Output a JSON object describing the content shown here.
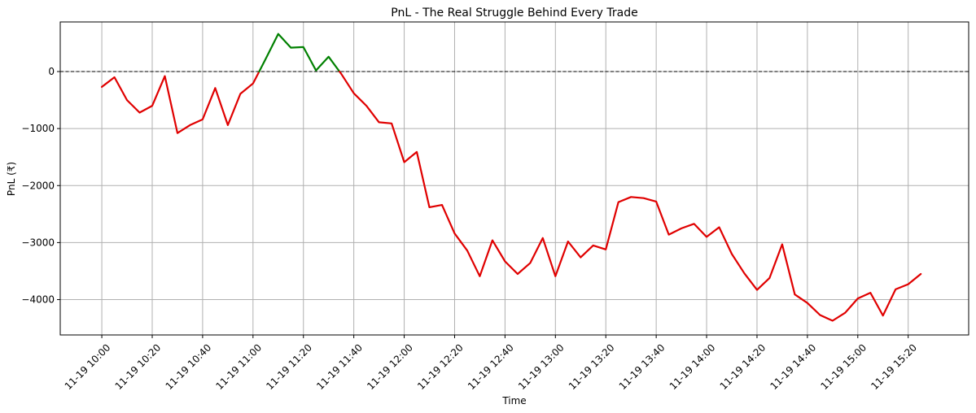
{
  "chart_data": {
    "type": "line",
    "title": "PnL - The Real Struggle Behind Every Trade",
    "xlabel": "Time",
    "ylabel": "PnL (₹)",
    "x_ticks": [
      "11-19 10:00",
      "11-19 10:20",
      "11-19 10:40",
      "11-19 11:00",
      "11-19 11:20",
      "11-19 11:40",
      "11-19 12:00",
      "11-19 12:20",
      "11-19 12:40",
      "11-19 13:00",
      "11-19 13:20",
      "11-19 13:40",
      "11-19 14:00",
      "11-19 14:20",
      "11-19 14:40",
      "11-19 15:00",
      "11-19 15:20"
    ],
    "y_ticks": [
      -4000,
      -3000,
      -2000,
      -1000,
      0
    ],
    "x_range_minutes_from_start": [
      -16.5,
      344
    ],
    "ylim": [
      -4620,
      870
    ],
    "grid": true,
    "zero_reference_line": {
      "y": 0,
      "style": "dashed",
      "color": "#000000"
    },
    "colors": {
      "positive": "#008000",
      "negative": "#e00000"
    },
    "series": [
      {
        "time": [
          "10:00",
          "10:05",
          "10:10",
          "10:15",
          "10:20",
          "10:25",
          "10:30",
          "10:35",
          "10:40",
          "10:45",
          "10:50",
          "10:55",
          "11:00",
          "11:05",
          "11:10",
          "11:15",
          "11:20",
          "11:25",
          "11:30",
          "11:35",
          "11:40",
          "11:45",
          "11:50",
          "11:55",
          "12:00",
          "12:05",
          "12:10",
          "12:15",
          "12:20",
          "12:25",
          "12:30",
          "12:35",
          "12:40",
          "12:45",
          "12:50",
          "12:55",
          "13:00",
          "13:05",
          "13:10",
          "13:15",
          "13:20",
          "13:25",
          "13:30",
          "13:35",
          "13:40",
          "13:45",
          "13:50",
          "13:55",
          "14:00",
          "14:05",
          "14:10",
          "14:15",
          "14:20",
          "14:25",
          "14:30",
          "14:35",
          "14:40",
          "14:45",
          "14:50",
          "14:55",
          "15:00",
          "15:05",
          "15:10",
          "15:15",
          "15:20",
          "15:25"
        ],
        "values": [
          -270,
          -100,
          -500,
          -720,
          -600,
          -80,
          -1080,
          -940,
          -840,
          -290,
          -940,
          -390,
          -210,
          220,
          660,
          420,
          430,
          20,
          260,
          -40,
          -380,
          -600,
          -890,
          -910,
          -1590,
          -1410,
          -2380,
          -2340,
          -2840,
          -3140,
          -3590,
          -2960,
          -3330,
          -3550,
          -3360,
          -2920,
          -3590,
          -2980,
          -3260,
          -3050,
          -3120,
          -2290,
          -2200,
          -2220,
          -2280,
          -2860,
          -2750,
          -2670,
          -2900,
          -2730,
          -3200,
          -3540,
          -3830,
          -3620,
          -3030,
          -3910,
          -4060,
          -4270,
          -4370,
          -4230,
          -3980,
          -3880,
          -4280,
          -3820,
          -3730,
          -3550
        ]
      }
    ]
  }
}
